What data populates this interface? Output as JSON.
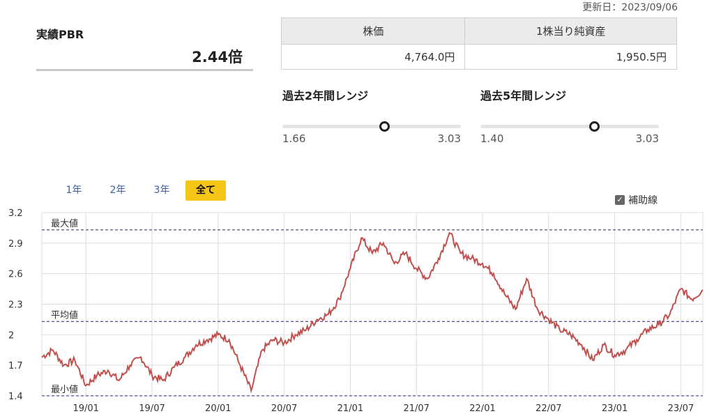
{
  "updated": "更新日：2023/09/06",
  "pbr": {
    "label": "実績PBR",
    "value": "2.44倍"
  },
  "price_table": {
    "headers": [
      "株価",
      "1株当り純資産"
    ],
    "values": [
      "4,764.0円",
      "1,950.5円"
    ]
  },
  "ranges": [
    {
      "title": "過去2年間レンジ",
      "min_label": "1.66",
      "max_label": "3.03",
      "min": 1.66,
      "max": 3.03,
      "current": 2.44
    },
    {
      "title": "過去5年間レンジ",
      "min_label": "1.40",
      "max_label": "3.03",
      "min": 1.4,
      "max": 3.03,
      "current": 2.44
    }
  ],
  "tabs": {
    "items": [
      "1年",
      "2年",
      "3年",
      "全て"
    ],
    "active_index": 3
  },
  "aux_label": "補助線",
  "colors": {
    "line": "#c0504d",
    "reference": "#5a4a8a",
    "tab_active": "#f5c518",
    "link": "#3a5fa8"
  },
  "chart_data": {
    "type": "line",
    "title": "",
    "xlabel": "",
    "ylabel": "",
    "ylim": [
      1.4,
      3.2
    ],
    "y_ticks": [
      "3.2",
      "2.9",
      "2.6",
      "2.3",
      "2",
      "1.7",
      "1.4"
    ],
    "x_ticks": [
      "19/01",
      "19/07",
      "20/01",
      "20/07",
      "21/01",
      "21/07",
      "22/01",
      "22/07",
      "23/01",
      "23/07"
    ],
    "grid": true,
    "reference_lines": [
      {
        "label": "最大値",
        "value": 3.03
      },
      {
        "label": "平均値",
        "value": 2.13
      },
      {
        "label": "最小値",
        "value": 1.4
      }
    ],
    "x": [
      "2018/09",
      "2018/10",
      "2018/11",
      "2018/12",
      "2019/01",
      "2019/02",
      "2019/03",
      "2019/04",
      "2019/05",
      "2019/06",
      "2019/07",
      "2019/08",
      "2019/09",
      "2019/10",
      "2019/11",
      "2019/12",
      "2020/01",
      "2020/02",
      "2020/03",
      "2020/04",
      "2020/05",
      "2020/06",
      "2020/07",
      "2020/08",
      "2020/09",
      "2020/10",
      "2020/11",
      "2020/12",
      "2021/01",
      "2021/02",
      "2021/03",
      "2021/04",
      "2021/05",
      "2021/06",
      "2021/07",
      "2021/08",
      "2021/09",
      "2021/10",
      "2021/11",
      "2021/12",
      "2022/01",
      "2022/02",
      "2022/03",
      "2022/04",
      "2022/05",
      "2022/06",
      "2022/07",
      "2022/08",
      "2022/09",
      "2022/10",
      "2022/11",
      "2022/12",
      "2023/01",
      "2023/02",
      "2023/03",
      "2023/04",
      "2023/05",
      "2023/06",
      "2023/07",
      "2023/08",
      "2023/09"
    ],
    "series": [
      {
        "values": [
          1.78,
          1.85,
          1.7,
          1.75,
          1.5,
          1.6,
          1.65,
          1.55,
          1.7,
          1.78,
          1.6,
          1.55,
          1.68,
          1.78,
          1.9,
          1.95,
          2.0,
          1.95,
          1.7,
          1.45,
          1.85,
          1.95,
          1.92,
          2.0,
          2.05,
          2.15,
          2.2,
          2.35,
          2.65,
          2.95,
          2.8,
          2.9,
          2.7,
          2.8,
          2.65,
          2.55,
          2.75,
          3.0,
          2.8,
          2.75,
          2.7,
          2.6,
          2.4,
          2.25,
          2.55,
          2.25,
          2.15,
          2.05,
          2.0,
          1.9,
          1.75,
          1.9,
          1.8,
          1.85,
          1.95,
          2.05,
          2.1,
          2.2,
          2.45,
          2.35,
          2.44
        ]
      }
    ]
  }
}
